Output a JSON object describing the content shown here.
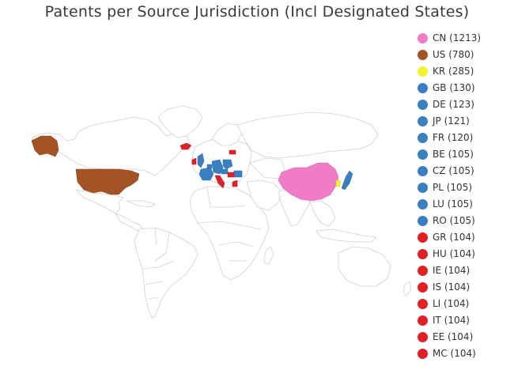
{
  "title": "Patents per Source Jurisdiction (Incl Designated States)",
  "legend": {
    "items": [
      {
        "code": "CN",
        "label": "CN (1213)",
        "count": 1213,
        "color": "#f07cc8"
      },
      {
        "code": "US",
        "label": "US (780)",
        "count": 780,
        "color": "#a35324"
      },
      {
        "code": "KR",
        "label": "KR (285)",
        "count": 285,
        "color": "#f2f230"
      },
      {
        "code": "GB",
        "label": "GB (130)",
        "count": 130,
        "color": "#3a7fc0"
      },
      {
        "code": "DE",
        "label": "DE (123)",
        "count": 123,
        "color": "#3a7fc0"
      },
      {
        "code": "JP",
        "label": "JP (121)",
        "count": 121,
        "color": "#3a7fc0"
      },
      {
        "code": "FR",
        "label": "FR (120)",
        "count": 120,
        "color": "#3a7fc0"
      },
      {
        "code": "BE",
        "label": "BE (105)",
        "count": 105,
        "color": "#3a7fc0"
      },
      {
        "code": "CZ",
        "label": "CZ (105)",
        "count": 105,
        "color": "#3a7fc0"
      },
      {
        "code": "PL",
        "label": "PL (105)",
        "count": 105,
        "color": "#3a7fc0"
      },
      {
        "code": "LU",
        "label": "LU (105)",
        "count": 105,
        "color": "#3a7fc0"
      },
      {
        "code": "RO",
        "label": "RO (105)",
        "count": 105,
        "color": "#3a7fc0"
      },
      {
        "code": "GR",
        "label": "GR (104)",
        "count": 104,
        "color": "#e12026"
      },
      {
        "code": "HU",
        "label": "HU (104)",
        "count": 104,
        "color": "#e12026"
      },
      {
        "code": "IE",
        "label": "IE (104)",
        "count": 104,
        "color": "#e12026"
      },
      {
        "code": "IS",
        "label": "IS (104)",
        "count": 104,
        "color": "#e12026"
      },
      {
        "code": "LI",
        "label": "LI (104)",
        "count": 104,
        "color": "#e12026"
      },
      {
        "code": "IT",
        "label": "IT (104)",
        "count": 104,
        "color": "#e12026"
      },
      {
        "code": "EE",
        "label": "EE (104)",
        "count": 104,
        "color": "#e12026"
      },
      {
        "code": "MC",
        "label": "MC (104)",
        "count": 104,
        "color": "#e12026"
      }
    ]
  },
  "map_colors": {
    "land_fill": "#ffffff",
    "border": "#cfcfcf"
  }
}
